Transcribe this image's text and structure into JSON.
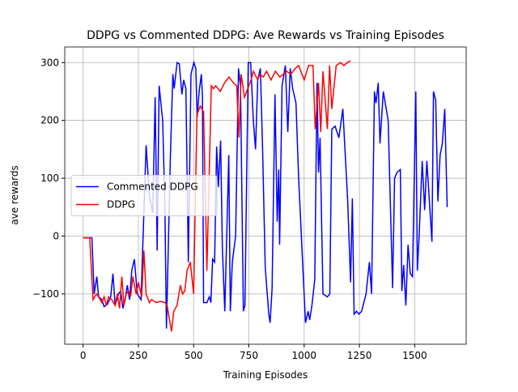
{
  "chart_data": {
    "type": "line",
    "title": "DDPG vs Commented DDPG: Ave Rewards vs Training Episodes",
    "x_label": "Training Episodes",
    "y_label": "ave rewards",
    "xlim": [
      -83,
      1733
    ],
    "ylim": [
      -187,
      327
    ],
    "xticks": [
      0,
      250,
      500,
      750,
      1000,
      1250,
      1500
    ],
    "yticks": [
      {
        "value": -100,
        "label": "−100"
      },
      0,
      100,
      200,
      300
    ],
    "grid": true,
    "legend": "center left",
    "series": [
      {
        "name": "Commented DDPG",
        "color": "#0000ff",
        "x": [
          0,
          40,
          50,
          62,
          70,
          85,
          95,
          110,
          125,
          135,
          145,
          160,
          170,
          180,
          190,
          200,
          210,
          220,
          232,
          245,
          262,
          285,
          300,
          315,
          326,
          335,
          344,
          360,
          370,
          377,
          395,
          406,
          412,
          425,
          435,
          447,
          455,
          465,
          476,
          488,
          501,
          510,
          516,
          525,
          535,
          540,
          545,
          560,
          571,
          578,
          586,
          595,
          604,
          612,
          622,
          630,
          641,
          659,
          666,
          675,
          690,
          703,
          712,
          725,
          732,
          747,
          758,
          770,
          780,
          790,
          802,
          812,
          824,
          840,
          846,
          855,
          868,
          878,
          885,
          889,
          900,
          915,
          926,
          937,
          948,
          963,
          975,
          1006,
          1018,
          1025,
          1035,
          1048,
          1058,
          1065,
          1072,
          1085,
          1105,
          1116,
          1125,
          1140,
          1157,
          1175,
          1197,
          1210,
          1218,
          1226,
          1237,
          1248,
          1260,
          1280,
          1295,
          1305,
          1318,
          1325,
          1335,
          1343,
          1358,
          1380,
          1400,
          1409,
          1420,
          1435,
          1442,
          1450,
          1460,
          1470,
          1480,
          1490,
          1505,
          1512,
          1520,
          1534,
          1545,
          1555,
          1565,
          1578,
          1585,
          1595,
          1605,
          1615,
          1625,
          1636,
          1647
        ],
        "values": [
          -3,
          -3,
          -100,
          -70,
          -105,
          -110,
          -122,
          -118,
          -105,
          -65,
          -120,
          -100,
          -95,
          -125,
          -110,
          -85,
          -110,
          -60,
          -40,
          -100,
          -110,
          157,
          70,
          40,
          240,
          -25,
          260,
          200,
          50,
          -160,
          140,
          280,
          255,
          300,
          298,
          245,
          270,
          255,
          -45,
          280,
          300,
          290,
          205,
          250,
          280,
          240,
          -115,
          -115,
          -105,
          -115,
          -40,
          -45,
          155,
          85,
          165,
          -20,
          -130,
          140,
          -130,
          -45,
          0,
          290,
          260,
          -130,
          -120,
          300,
          300,
          200,
          150,
          270,
          290,
          150,
          -55,
          -135,
          -150,
          -90,
          245,
          25,
          115,
          -15,
          260,
          295,
          180,
          290,
          255,
          230,
          100,
          -150,
          -130,
          -145,
          -120,
          -75,
          265,
          110,
          170,
          -100,
          -105,
          -100,
          185,
          190,
          170,
          220,
          60,
          -80,
          65,
          -135,
          -130,
          -135,
          -130,
          -100,
          -45,
          -100,
          250,
          230,
          265,
          160,
          250,
          200,
          -90,
          100,
          110,
          115,
          -95,
          -50,
          -120,
          -15,
          -65,
          -70,
          250,
          -60,
          0,
          130,
          45,
          130,
          70,
          -10,
          250,
          235,
          60,
          140,
          160,
          220,
          50
        ]
      },
      {
        "name": "DDPG",
        "color": "#ff0000",
        "x": [
          0,
          30,
          45,
          60,
          70,
          85,
          95,
          105,
          115,
          130,
          145,
          155,
          165,
          175,
          185,
          195,
          205,
          215,
          225,
          240,
          250,
          265,
          275,
          285,
          300,
          310,
          330,
          350,
          370,
          380,
          400,
          410,
          425,
          440,
          450,
          460,
          470,
          485,
          500,
          515,
          530,
          545,
          560,
          580,
          590,
          600,
          620,
          640,
          660,
          680,
          695,
          705,
          715,
          730,
          745,
          760,
          770,
          790,
          800,
          815,
          830,
          850,
          870,
          890,
          905,
          920,
          940,
          960,
          975,
          1000,
          1020,
          1040,
          1050,
          1065,
          1075,
          1085,
          1105,
          1115,
          1125,
          1145,
          1165,
          1180,
          1195,
          1210
        ],
        "values": [
          -3,
          -3,
          -110,
          -100,
          -105,
          -115,
          -105,
          -120,
          -105,
          -110,
          -120,
          -100,
          -125,
          -70,
          -120,
          -100,
          -95,
          -105,
          -70,
          -100,
          -80,
          -105,
          -25,
          -100,
          -115,
          -110,
          -115,
          -113,
          -115,
          -120,
          -165,
          -130,
          -120,
          -85,
          -100,
          -95,
          -60,
          -45,
          -100,
          210,
          225,
          215,
          -60,
          260,
          255,
          260,
          250,
          265,
          275,
          265,
          260,
          170,
          280,
          240,
          255,
          270,
          285,
          270,
          280,
          275,
          285,
          270,
          285,
          275,
          280,
          285,
          280,
          290,
          295,
          270,
          295,
          295,
          185,
          265,
          180,
          285,
          185,
          295,
          220,
          295,
          300,
          295,
          300,
          303
        ]
      }
    ]
  }
}
